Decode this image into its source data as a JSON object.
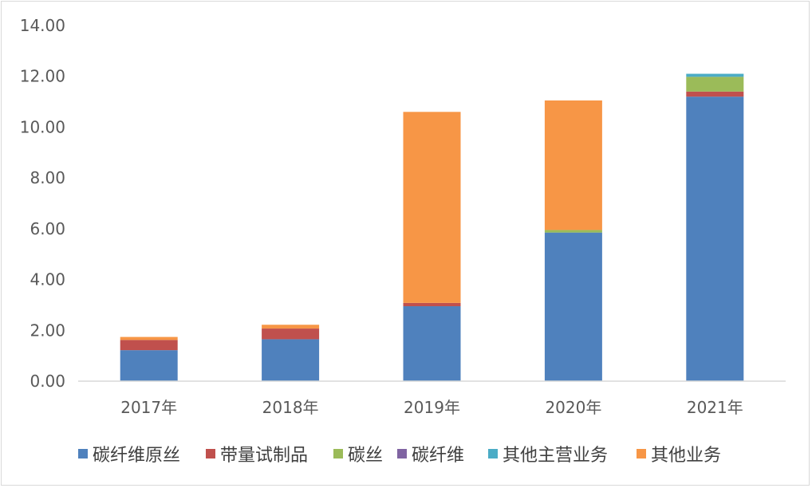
{
  "chart_data": {
    "type": "bar",
    "stacked": true,
    "categories": [
      "2017年",
      "2018年",
      "2019年",
      "2020年",
      "2021年"
    ],
    "ylim": [
      0,
      14
    ],
    "yticks": [
      "0.00",
      "2.00",
      "4.00",
      "6.00",
      "8.00",
      "10.00",
      "12.00",
      "14.00"
    ],
    "ytick_values": [
      0,
      2,
      4,
      6,
      8,
      10,
      12,
      14
    ],
    "grid": false,
    "legend_position": "bottom",
    "series": [
      {
        "name": "碳纤维原丝",
        "color": "#4f81bd",
        "values": [
          1.22,
          1.65,
          2.95,
          5.85,
          11.2
        ]
      },
      {
        "name": "带量试制品",
        "color": "#c0504d",
        "values": [
          0.4,
          0.42,
          0.13,
          0.0,
          0.2
        ]
      },
      {
        "name": "碳丝",
        "color": "#9bbb59",
        "values": [
          0.0,
          0.0,
          0.0,
          0.1,
          0.58
        ]
      },
      {
        "name": "碳纤维",
        "color": "#8064a2",
        "values": [
          0.0,
          0.0,
          0.0,
          0.0,
          0.0
        ]
      },
      {
        "name": "其他主营业务",
        "color": "#4bacc6",
        "values": [
          0.0,
          0.0,
          0.0,
          0.0,
          0.12
        ]
      },
      {
        "name": "其他业务",
        "color": "#f79646",
        "values": [
          0.12,
          0.15,
          7.52,
          5.1,
          0.0
        ]
      }
    ]
  }
}
